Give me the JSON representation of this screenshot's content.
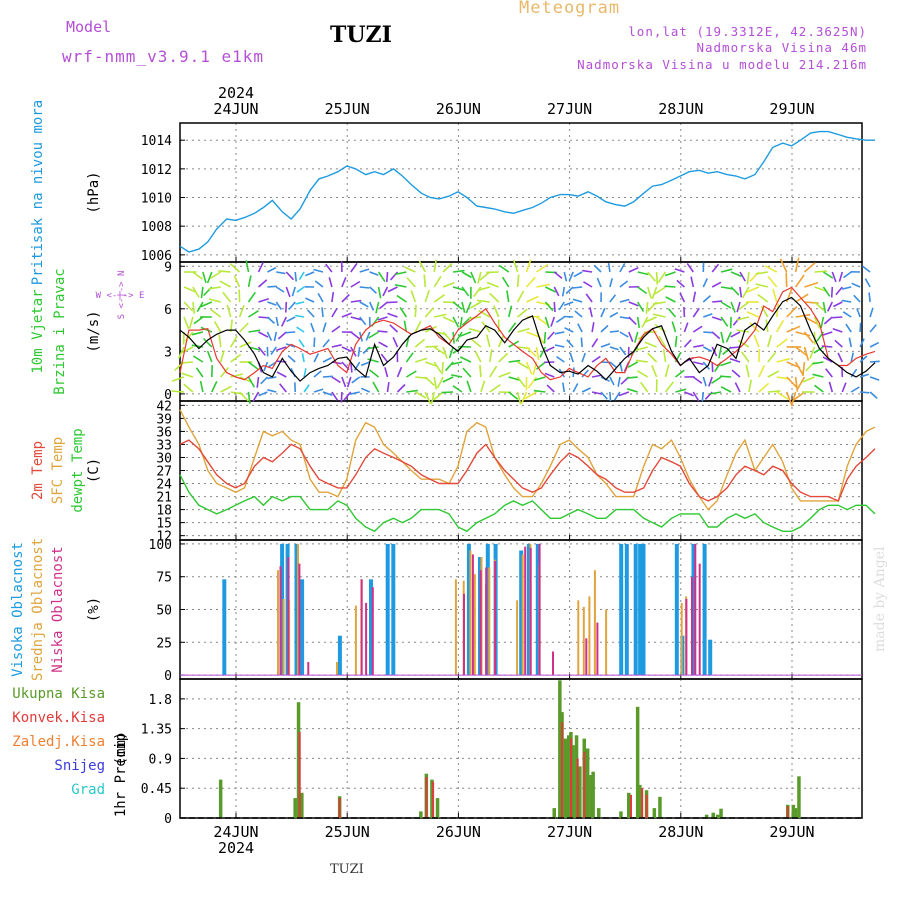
{
  "header": {
    "model_label": "Model",
    "model_value": "wrf-nmm_v3.9.1 e1km",
    "station": "TUZI",
    "title": "Meteogram",
    "lonlat": "lon,lat (19.3312E, 42.3625N)",
    "elevation": "Nadmorska Visina 46m",
    "elevation_model": "Nadmorska Visina u modelu 214.216m",
    "watermark": "made by Angel",
    "bottom_station": "TUZI"
  },
  "colors": {
    "pressure": "#1e9be0",
    "wind": "#000000",
    "gust": "#e8382e",
    "temp2m": "#e24a3b",
    "sfc_temp": "#e0a43c",
    "dewpoint": "#2ec832",
    "cloud_high": "#1e9be0",
    "cloud_mid": "#e0a43c",
    "cloud_low": "#d0308a",
    "precip_total": "#5a9a2a",
    "precip_conv": "#e03a3a",
    "precip_frz": "#f08030",
    "precip_snow": "#3a3ae0",
    "precip_hail": "#28c8c8"
  },
  "axis_top": {
    "year": "2024",
    "days": [
      "24JUN",
      "25JUN",
      "26JUN",
      "27JUN",
      "28JUN",
      "29JUN"
    ]
  },
  "axis_bottom": {
    "year": "2024",
    "days": [
      "24JUN",
      "25JUN",
      "26JUN",
      "27JUN",
      "28JUN",
      "29JUN"
    ]
  },
  "chart_data": [
    {
      "type": "line",
      "panel": "pressure",
      "ylabel": "Pritisak na nivou mora",
      "unit": "(hPa)",
      "ylim": [
        1005.5,
        1015.2
      ],
      "yticks": [
        1006,
        1008,
        1010,
        1012,
        1014
      ],
      "grid": true,
      "x_unit_days_from_start": "time in days",
      "x": [
        0,
        0.08,
        0.17,
        0.25,
        0.33,
        0.42,
        0.5,
        0.58,
        0.67,
        0.75,
        0.83,
        0.92,
        1.0,
        1.08,
        1.17,
        1.25,
        1.33,
        1.42,
        1.5,
        1.58,
        1.67,
        1.75,
        1.83,
        1.92,
        2.0,
        2.08,
        2.17,
        2.25,
        2.33,
        2.42,
        2.5,
        2.58,
        2.67,
        2.75,
        2.83,
        2.92,
        3.0,
        3.08,
        3.17,
        3.25,
        3.33,
        3.42,
        3.5,
        3.58,
        3.67,
        3.75,
        3.83,
        3.92,
        4.0,
        4.08,
        4.17,
        4.25,
        4.33,
        4.42,
        4.5,
        4.58,
        4.67,
        4.75,
        4.83,
        4.92,
        5.0,
        5.08,
        5.17,
        5.25,
        5.33,
        5.42,
        5.5,
        5.58,
        5.67,
        5.75,
        5.83,
        5.92,
        6.0,
        6.08,
        6.17,
        6.25
      ],
      "series": [
        {
          "name": "Pritisak na nivou mora",
          "values": [
            1006.6,
            1006.2,
            1006.4,
            1006.9,
            1007.8,
            1008.5,
            1008.4,
            1008.6,
            1008.9,
            1009.3,
            1009.8,
            1009.0,
            1008.5,
            1009.2,
            1010.5,
            1011.3,
            1011.5,
            1011.8,
            1012.2,
            1012.0,
            1011.6,
            1011.8,
            1011.6,
            1012.0,
            1011.5,
            1010.9,
            1010.3,
            1010.0,
            1009.9,
            1010.1,
            1010.4,
            1010.0,
            1009.4,
            1009.3,
            1009.2,
            1009.0,
            1008.9,
            1009.1,
            1009.3,
            1009.6,
            1010.0,
            1010.2,
            1010.2,
            1010.1,
            1010.4,
            1010.1,
            1009.7,
            1009.5,
            1009.4,
            1009.7,
            1010.3,
            1010.8,
            1010.9,
            1011.2,
            1011.5,
            1011.8,
            1011.9,
            1011.7,
            1011.8,
            1011.6,
            1011.5,
            1011.3,
            1011.6,
            1012.5,
            1013.5,
            1013.8,
            1013.6,
            1014.0,
            1014.5,
            1014.6,
            1014.6,
            1014.4,
            1014.2,
            1014.1,
            1014.0,
            1014.0
          ]
        }
      ]
    },
    {
      "type": "line",
      "panel": "wind",
      "ylabel": "10m Vjetar Brzina i Pravac",
      "unit": "(m/s)",
      "compass_note": "W <-|-> E, S <-|-> N",
      "ylim": [
        -0.5,
        9.3
      ],
      "yticks": [
        0,
        3,
        6,
        9
      ],
      "grid": true,
      "x": [
        0,
        0.08,
        0.17,
        0.25,
        0.33,
        0.42,
        0.5,
        0.58,
        0.67,
        0.75,
        0.83,
        0.92,
        1.0,
        1.08,
        1.17,
        1.25,
        1.33,
        1.42,
        1.5,
        1.58,
        1.67,
        1.75,
        1.83,
        1.92,
        2.0,
        2.08,
        2.17,
        2.25,
        2.33,
        2.42,
        2.5,
        2.58,
        2.67,
        2.75,
        2.83,
        2.92,
        3.0,
        3.08,
        3.17,
        3.25,
        3.33,
        3.42,
        3.5,
        3.58,
        3.67,
        3.75,
        3.83,
        3.92,
        4.0,
        4.08,
        4.17,
        4.25,
        4.33,
        4.42,
        4.5,
        4.58,
        4.67,
        4.75,
        4.83,
        4.92,
        5.0,
        5.08,
        5.17,
        5.25,
        5.33,
        5.42,
        5.5,
        5.58,
        5.67,
        5.75,
        5.83,
        5.92,
        6.0,
        6.08,
        6.17,
        6.25
      ],
      "series": [
        {
          "name": "speed",
          "values": [
            4.5,
            4.0,
            3.2,
            3.8,
            4.2,
            4.5,
            4.5,
            3.8,
            2.8,
            1.5,
            1.2,
            2.5,
            1.6,
            0.9,
            1.5,
            1.8,
            2.0,
            2.5,
            2.6,
            1.8,
            1.2,
            3.5,
            2.0,
            2.6,
            3.5,
            4.2,
            4.5,
            4.6,
            4.2,
            3.5,
            3.0,
            3.8,
            4.0,
            4.8,
            4.5,
            3.6,
            4.5,
            5.2,
            5.5,
            3.5,
            2.0,
            1.5,
            1.6,
            1.4,
            2.0,
            1.6,
            1.0,
            1.8,
            2.5,
            3.0,
            4.0,
            4.6,
            4.8,
            3.0,
            2.0,
            2.5,
            1.5,
            2.0,
            3.5,
            3.2,
            2.5,
            4.5,
            5.0,
            4.5,
            5.5,
            6.5,
            6.8,
            6.2,
            4.5,
            3.2,
            2.5,
            2.0,
            1.5,
            1.2,
            1.6,
            2.2
          ]
        },
        {
          "name": "gust",
          "values": [
            1.5,
            4.5,
            4.5,
            4.6,
            2.5,
            1.5,
            1.2,
            1.0,
            1.5,
            2.0,
            1.8,
            3.0,
            3.5,
            3.2,
            2.8,
            3.0,
            3.2,
            2.0,
            1.5,
            3.5,
            4.5,
            5.0,
            5.2,
            5.0,
            4.6,
            4.2,
            4.5,
            4.8,
            4.0,
            3.5,
            4.5,
            5.0,
            5.5,
            6.0,
            5.0,
            4.0,
            3.5,
            3.0,
            2.5,
            1.5,
            1.0,
            1.2,
            1.8,
            1.5,
            1.2,
            2.0,
            2.5,
            1.5,
            1.5,
            3.0,
            4.2,
            4.6,
            3.5,
            2.8,
            2.0,
            2.5,
            2.6,
            2.4,
            2.0,
            2.5,
            3.0,
            3.6,
            4.5,
            6.2,
            5.8,
            7.2,
            7.5,
            6.8,
            6.0,
            5.0,
            2.5,
            2.0,
            2.0,
            2.5,
            2.8,
            3.0
          ]
        }
      ]
    },
    {
      "type": "line",
      "panel": "temperature",
      "ylabel": "2m Temp / SFC Temp / dewpt Temp",
      "unit": "(C)",
      "ylim": [
        11,
        43
      ],
      "yticks": [
        12,
        15,
        18,
        21,
        24,
        27,
        30,
        33,
        36,
        39,
        42
      ],
      "grid": true,
      "x": [
        0,
        0.08,
        0.17,
        0.25,
        0.33,
        0.42,
        0.5,
        0.58,
        0.67,
        0.75,
        0.83,
        0.92,
        1.0,
        1.08,
        1.17,
        1.25,
        1.33,
        1.42,
        1.5,
        1.58,
        1.67,
        1.75,
        1.83,
        1.92,
        2.0,
        2.08,
        2.17,
        2.25,
        2.33,
        2.42,
        2.5,
        2.58,
        2.67,
        2.75,
        2.83,
        2.92,
        3.0,
        3.08,
        3.17,
        3.25,
        3.33,
        3.42,
        3.5,
        3.58,
        3.67,
        3.75,
        3.83,
        3.92,
        4.0,
        4.08,
        4.17,
        4.25,
        4.33,
        4.42,
        4.5,
        4.58,
        4.67,
        4.75,
        4.83,
        4.92,
        5.0,
        5.08,
        5.17,
        5.25,
        5.33,
        5.42,
        5.5,
        5.58,
        5.67,
        5.75,
        5.83,
        5.92,
        6.0,
        6.08,
        6.17,
        6.25
      ],
      "series": [
        {
          "name": "2m Temp",
          "values": [
            33,
            34,
            32,
            29,
            26,
            24,
            23,
            24,
            28,
            30,
            29,
            31,
            33,
            32,
            28,
            25,
            24,
            23,
            23,
            26,
            30,
            32,
            31,
            30,
            29,
            28,
            26,
            25,
            24,
            24,
            24,
            27,
            31,
            33,
            30,
            27,
            25,
            23,
            22,
            23,
            26,
            29,
            31,
            30,
            28,
            26,
            25,
            23,
            22,
            22,
            23,
            27,
            30,
            29,
            28,
            24,
            21,
            20,
            21,
            23,
            26,
            28,
            27,
            26,
            28,
            27,
            24,
            22,
            21,
            21,
            21,
            20,
            25,
            28,
            30,
            32
          ]
        },
        {
          "name": "SFC Temp",
          "values": [
            41,
            37,
            33,
            27,
            24,
            23,
            22,
            23,
            30,
            36,
            35,
            36,
            34,
            33,
            25,
            22,
            22,
            21,
            25,
            34,
            38,
            37,
            33,
            31,
            29,
            27,
            25,
            25,
            25,
            24,
            28,
            36,
            38,
            37,
            30,
            26,
            23,
            21,
            21,
            24,
            28,
            33,
            34,
            32,
            30,
            26,
            24,
            21,
            21,
            21,
            28,
            33,
            32,
            34,
            30,
            25,
            21,
            18,
            20,
            26,
            31,
            34,
            27,
            30,
            33,
            29,
            23,
            20,
            20,
            20,
            20,
            20,
            28,
            33,
            36,
            37
          ]
        },
        {
          "name": "dewpt Temp",
          "values": [
            26,
            22,
            19,
            18,
            17,
            18,
            19,
            20,
            21,
            19,
            21,
            20,
            21,
            21,
            18,
            18,
            18,
            20,
            19,
            16,
            14,
            13,
            15,
            16,
            15,
            16,
            18,
            18,
            18,
            17,
            14,
            13,
            15,
            16,
            17,
            19,
            20,
            19,
            20,
            18,
            16,
            16,
            17,
            18,
            17,
            16,
            16,
            18,
            18,
            18,
            16,
            15,
            14,
            16,
            17,
            17,
            17,
            14,
            14,
            16,
            17,
            16,
            17,
            15,
            14,
            13,
            13,
            14,
            16,
            18,
            19,
            19,
            18,
            19,
            19,
            17
          ]
        }
      ]
    },
    {
      "type": "bar",
      "panel": "cloud",
      "ylabel": "Visoka Oblacnost / Srednja Oblacnost / Niska Oblacnost",
      "unit": "(%)",
      "ylim": [
        -3,
        103
      ],
      "yticks": [
        0,
        25,
        50,
        75,
        100
      ],
      "grid": true,
      "series": [
        {
          "name": "Visoka Oblacnost",
          "x": [
            0.38,
            0.9,
            0.95,
            1.03,
            1.08,
            1.42,
            1.7,
            1.85,
            1.9,
            2.58,
            2.68,
            2.75,
            2.82,
            3.05,
            3.12,
            3.2,
            3.95,
            4.0,
            4.08,
            4.12,
            4.15,
            4.45,
            4.5,
            4.6,
            4.7,
            4.75
          ],
          "values": [
            73,
            100,
            100,
            100,
            73,
            30,
            73,
            100,
            100,
            100,
            90,
            100,
            100,
            95,
            100,
            100,
            100,
            100,
            100,
            100,
            100,
            100,
            30,
            100,
            100,
            27
          ]
        },
        {
          "name": "Srednja Oblacnost",
          "x": [
            0.85,
            0.9,
            0.95,
            1.03,
            1.38,
            1.55,
            1.6,
            2.45,
            2.52,
            2.58,
            2.62,
            2.68,
            2.72,
            2.75,
            2.8,
            3.0,
            3.05,
            3.12,
            3.2,
            3.55,
            3.6,
            3.65,
            3.7,
            3.8,
            4.48,
            4.52
          ],
          "values": [
            80,
            58,
            57,
            100,
            10,
            53,
            73,
            73,
            72,
            95,
            77,
            90,
            70,
            82,
            88,
            57,
            92,
            100,
            83,
            57,
            52,
            60,
            80,
            50,
            55,
            60
          ]
        },
        {
          "name": "Niska Oblacnost",
          "x": [
            0.85,
            0.92,
            1.02,
            1.1,
            1.58,
            1.62,
            1.68,
            2.5,
            2.58,
            2.65,
            2.7,
            2.78,
            3.05,
            3.1,
            3.18,
            3.3,
            3.6,
            3.7,
            4.5,
            4.55,
            4.58,
            4.62
          ],
          "values": [
            83,
            90,
            85,
            10,
            73,
            55,
            67,
            62,
            92,
            80,
            82,
            87,
            98,
            97,
            100,
            18,
            28,
            40,
            58,
            75,
            100,
            85
          ]
        }
      ]
    },
    {
      "type": "bar",
      "panel": "precip",
      "ylabel": "1hr Precip",
      "unit": "(mm)",
      "legend": [
        "Ukupna Kisa",
        "Konvek.Kisa",
        "Zaledj.Kisa",
        "Snijeg",
        "Grad"
      ],
      "ylim": [
        0,
        2.1
      ],
      "yticks": [
        0,
        0.45,
        0.9,
        1.35,
        1.8
      ],
      "grid": true,
      "series": [
        {
          "name": "Ukupna Kisa",
          "x": [
            0.35,
            1.02,
            1.05,
            1.08,
            1.42,
            2.15,
            2.2,
            2.25,
            2.3,
            3.35,
            3.4,
            3.42,
            3.45,
            3.48,
            3.5,
            3.52,
            3.55,
            3.58,
            3.62,
            3.65,
            3.68,
            3.7,
            3.75,
            3.95,
            4.02,
            4.1,
            4.12,
            4.18,
            4.25,
            4.3,
            4.72,
            4.78,
            4.82,
            4.85,
            5.45,
            5.5,
            5.52,
            5.55
          ],
          "values": [
            0.58,
            0.3,
            1.75,
            0.38,
            0.33,
            0.1,
            0.67,
            0.58,
            0.3,
            0.15,
            2.08,
            1.6,
            1.2,
            1.25,
            1.3,
            1.1,
            1.25,
            0.78,
            1.2,
            1.05,
            0.65,
            0.7,
            0.15,
            0.1,
            0.38,
            1.68,
            0.5,
            0.42,
            0.15,
            0.32,
            0.05,
            0.08,
            0.05,
            0.14,
            0.2,
            0.2,
            0.15,
            0.63
          ]
        },
        {
          "name": "Konvek.Kisa",
          "x": [
            1.06,
            1.42,
            2.2,
            2.26,
            3.42,
            3.5,
            3.56,
            3.62,
            4.04,
            4.14,
            4.18,
            5.45
          ],
          "values": [
            1.3,
            0.3,
            0.62,
            0.55,
            1.45,
            1.2,
            0.9,
            1.0,
            0.35,
            0.45,
            0.35,
            0.18
          ]
        }
      ]
    }
  ]
}
